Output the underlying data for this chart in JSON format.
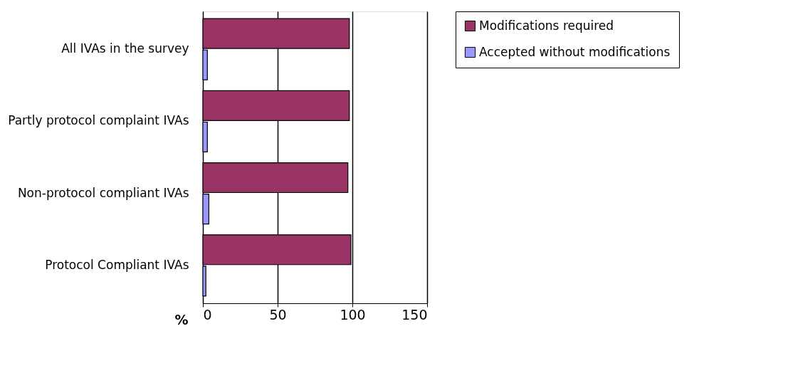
{
  "chart_data": {
    "type": "bar",
    "orientation": "horizontal",
    "xlabel": "%",
    "categories": [
      "All IVAs in the survey",
      "Partly protocol complaint IVAs",
      "Non-protocol compliant IVAs",
      "Protocol Compliant IVAs"
    ],
    "series": [
      {
        "name": "Modifications required",
        "color": "#993366",
        "values": [
          98,
          98,
          97,
          99
        ]
      },
      {
        "name": "Accepted without modifications",
        "color": "#9999ff",
        "values": [
          3,
          3,
          4,
          2
        ]
      }
    ],
    "xlim": [
      0,
      150
    ],
    "xticks": [
      0,
      50,
      100,
      150
    ],
    "grid": "x",
    "legend": "right"
  }
}
